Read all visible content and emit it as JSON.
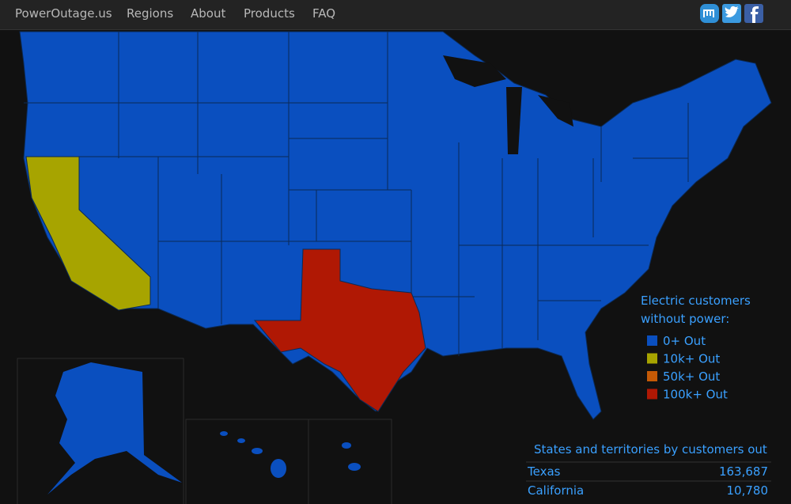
{
  "nav": {
    "brand": "PowerOutage.us",
    "links": [
      "Regions",
      "About",
      "Products",
      "FAQ"
    ]
  },
  "legend": {
    "title_lines": [
      "Electric customers",
      "without power:"
    ],
    "items": [
      {
        "label": "0+ Out",
        "color": "#0a4fbf"
      },
      {
        "label": "10k+ Out",
        "color": "#a7a400"
      },
      {
        "label": "50k+ Out",
        "color": "#c55a06"
      },
      {
        "label": "100k+ Out",
        "color": "#b01804"
      }
    ]
  },
  "table": {
    "title": "States and territories by customers out",
    "rows": [
      [
        "Texas",
        "163,687"
      ],
      [
        "California",
        "10,780"
      ]
    ]
  }
}
